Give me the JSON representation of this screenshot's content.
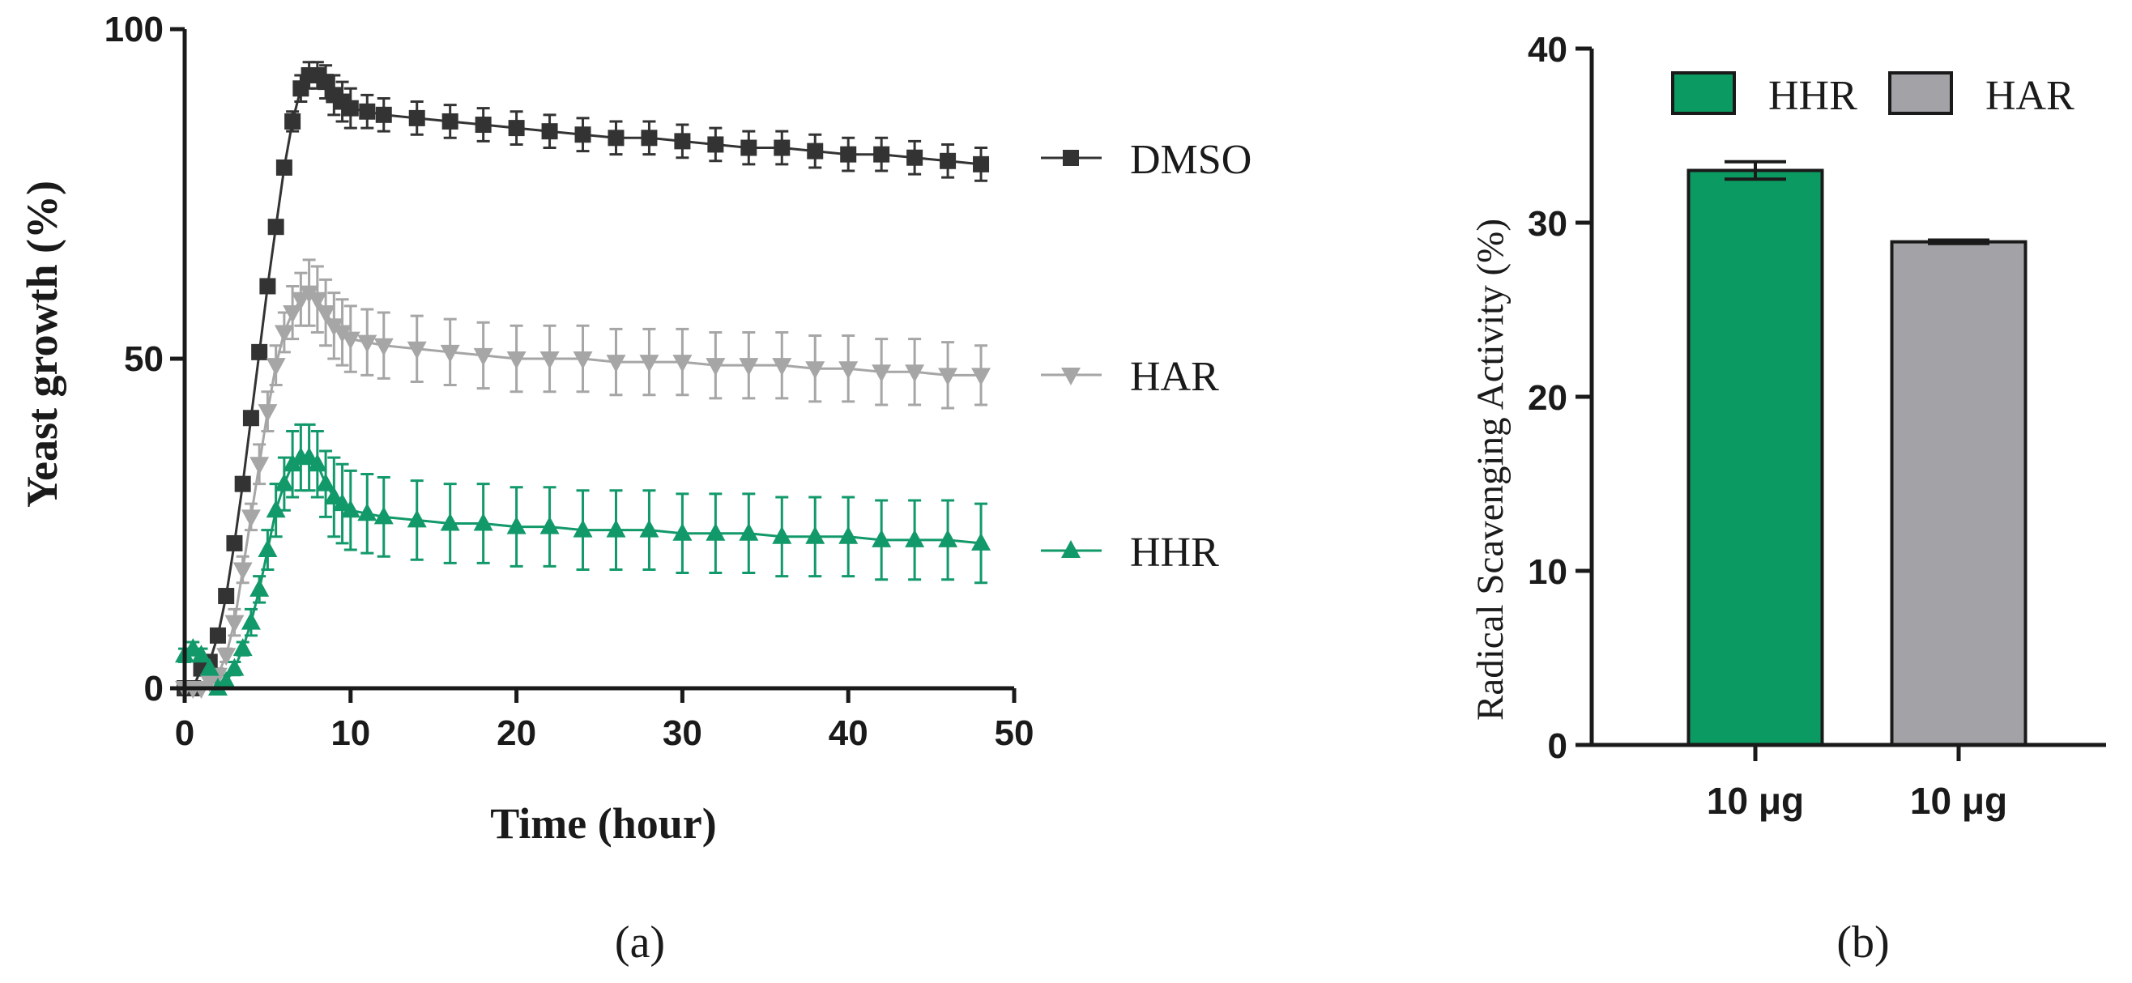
{
  "chart_data": [
    {
      "panel_label": "(a)",
      "type": "line",
      "xlabel": "Time (hour)",
      "ylabel": "Yeast growth (%)",
      "xlim": [
        0,
        50
      ],
      "ylim": [
        0,
        100
      ],
      "xticks": [
        "0",
        "10",
        "20",
        "30",
        "40",
        "50"
      ],
      "yticks": [
        "0",
        "50",
        "100"
      ],
      "x": [
        0,
        0.5,
        1,
        1.5,
        2,
        2.5,
        3,
        3.5,
        4,
        4.5,
        5,
        5.5,
        6,
        6.5,
        7,
        7.5,
        8,
        8.5,
        9,
        9.5,
        10,
        11,
        12,
        14,
        16,
        18,
        20,
        22,
        24,
        26,
        28,
        30,
        32,
        34,
        36,
        38,
        40,
        42,
        44,
        46,
        48
      ],
      "series": [
        {
          "name": "DMSO",
          "color": "#333333",
          "marker": "square",
          "values": [
            0,
            0,
            3,
            4,
            8,
            14,
            22,
            31,
            41,
            51,
            61,
            70,
            79,
            86,
            91,
            93,
            93,
            92,
            90,
            89,
            88,
            87.5,
            87,
            86.5,
            86,
            85.5,
            85,
            84.5,
            84,
            83.5,
            83.5,
            83,
            82.5,
            82,
            82,
            81.5,
            81,
            81,
            80.5,
            80,
            79.5
          ],
          "errors": [
            0,
            0,
            1,
            1,
            1,
            1,
            1,
            1,
            1,
            1,
            1,
            1,
            1,
            1.5,
            2,
            2,
            2,
            2.5,
            3,
            3,
            3,
            2.5,
            2.5,
            2.5,
            2.5,
            2.5,
            2.5,
            2.5,
            2.5,
            2.5,
            2.5,
            2.5,
            2.5,
            2.5,
            2.5,
            2.5,
            2.5,
            2.5,
            2.5,
            2.5,
            2.5
          ]
        },
        {
          "name": "HAR",
          "color": "#a6a6a6",
          "marker": "triangle-down",
          "values": [
            0,
            0,
            0,
            1,
            2,
            5,
            10,
            18,
            26,
            34,
            42,
            49,
            54,
            57,
            59,
            60,
            59,
            57,
            55,
            54,
            53,
            52.5,
            52,
            51.5,
            51,
            50.5,
            50,
            50,
            50,
            49.5,
            49.5,
            49.5,
            49,
            49,
            49,
            48.5,
            48.5,
            48,
            48,
            47.5,
            47.5
          ],
          "errors": [
            0,
            0,
            0,
            1,
            1,
            1,
            2,
            2,
            2,
            3,
            3,
            3,
            3,
            4,
            4,
            5,
            5,
            5,
            5,
            5,
            5,
            5,
            5,
            5,
            5,
            5,
            5,
            5,
            5,
            5,
            5,
            5,
            5,
            5,
            5,
            5,
            5,
            5,
            5,
            5,
            4.5
          ]
        },
        {
          "name": "HHR",
          "color": "#12996a",
          "marker": "triangle-up",
          "values": [
            5,
            6,
            5,
            3,
            0,
            1,
            3,
            6,
            10,
            15,
            21,
            27,
            31,
            34,
            35,
            35,
            34,
            31,
            29,
            28,
            27,
            26.5,
            26,
            25.5,
            25,
            25,
            24.5,
            24.5,
            24,
            24,
            24,
            23.5,
            23.5,
            23.5,
            23,
            23,
            23,
            22.5,
            22.5,
            22.5,
            22
          ],
          "errors": [
            1,
            1,
            1,
            1,
            0,
            1,
            1,
            1,
            2,
            2,
            3,
            4,
            4,
            5,
            5,
            5,
            5,
            5,
            6,
            6,
            6,
            6,
            6,
            6,
            6,
            6,
            6,
            6,
            6,
            6,
            6,
            6,
            6,
            6,
            6,
            6,
            6,
            6,
            6,
            6,
            6
          ]
        }
      ],
      "legend": [
        "DMSO",
        "HAR",
        "HHR"
      ]
    },
    {
      "panel_label": "(b)",
      "type": "bar",
      "ylabel": "Radical Scavenging Activity (%)",
      "ylim": [
        0,
        40
      ],
      "yticks": [
        "0",
        "10",
        "20",
        "30",
        "40"
      ],
      "categories": [
        "10 μg",
        "10 μg"
      ],
      "series": [
        {
          "name": "HHR",
          "color": "#0c9a63",
          "value": 33.0,
          "error": 0.5
        },
        {
          "name": "HAR",
          "color": "#a3a3a7",
          "value": 28.9,
          "error": 0.1
        }
      ],
      "legend": [
        "HHR",
        "HAR"
      ]
    }
  ]
}
